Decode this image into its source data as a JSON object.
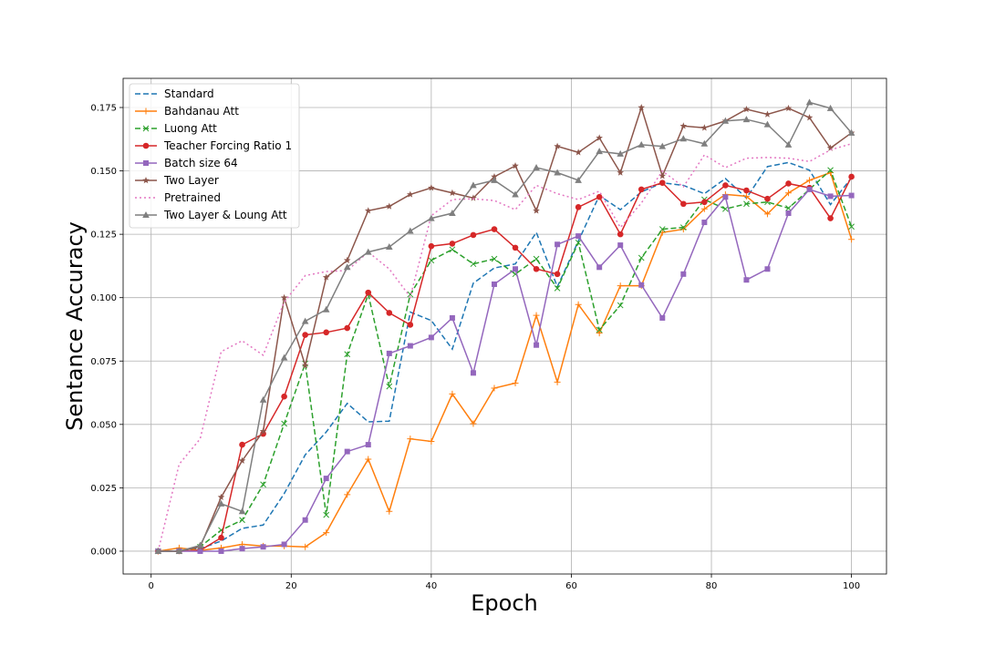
{
  "chart_data": {
    "type": "line",
    "title": "",
    "xlabel": "Epoch",
    "ylabel": "Sentance Accuracy",
    "xlim": [
      -4,
      105
    ],
    "ylim": [
      -0.009,
      0.1865
    ],
    "xticks": [
      0,
      20,
      40,
      60,
      80,
      100
    ],
    "yticks": [
      0.0,
      0.025,
      0.05,
      0.075,
      0.1,
      0.125,
      0.15,
      0.175
    ],
    "ytick_labels": [
      "0.000",
      "0.025",
      "0.050",
      "0.075",
      "0.100",
      "0.125",
      "0.150",
      "0.175"
    ],
    "xtick_labels": [
      "0",
      "20",
      "40",
      "60",
      "80",
      "100"
    ],
    "grid": true,
    "legend_position": "top-left",
    "x": [
      1,
      4,
      7,
      10,
      13,
      16,
      19,
      22,
      25,
      28,
      31,
      34,
      37,
      40,
      43,
      46,
      49,
      52,
      55,
      58,
      61,
      64,
      67,
      70,
      73,
      76,
      79,
      82,
      85,
      88,
      91,
      94,
      97,
      100
    ],
    "series": [
      {
        "name": "Standard",
        "color": "#1f77b4",
        "dash": "6,3",
        "marker": "none",
        "values": [
          0.0,
          0.0,
          0.001,
          0.004,
          0.009,
          0.0103,
          0.0227,
          0.038,
          0.047,
          0.0583,
          0.051,
          0.0513,
          0.0943,
          0.091,
          0.0797,
          0.1057,
          0.1117,
          0.1133,
          0.1257,
          0.1043,
          0.1223,
          0.1403,
          0.1347,
          0.1417,
          0.1453,
          0.1443,
          0.141,
          0.147,
          0.1393,
          0.1517,
          0.1533,
          0.1503,
          0.1367,
          0.1473
        ]
      },
      {
        "name": "Bahdanau Att",
        "color": "#ff7f0e",
        "dash": "",
        "marker": "plus",
        "values": [
          0.0,
          0.0013,
          0.0003,
          0.0013,
          0.0027,
          0.002,
          0.002,
          0.0017,
          0.0073,
          0.0223,
          0.0363,
          0.0157,
          0.0443,
          0.0433,
          0.062,
          0.0503,
          0.0643,
          0.0663,
          0.093,
          0.0667,
          0.0973,
          0.086,
          0.1047,
          0.1047,
          0.1257,
          0.127,
          0.135,
          0.1407,
          0.14,
          0.133,
          0.1413,
          0.1463,
          0.1493,
          0.123
        ]
      },
      {
        "name": "Luong Att",
        "color": "#2ca02c",
        "dash": "6,3",
        "marker": "x",
        "values": [
          0.0,
          0.0,
          0.0017,
          0.0083,
          0.0123,
          0.0263,
          0.0503,
          0.074,
          0.0143,
          0.0777,
          0.1013,
          0.065,
          0.1013,
          0.1147,
          0.119,
          0.1133,
          0.1153,
          0.1093,
          0.1153,
          0.1037,
          0.1217,
          0.0873,
          0.097,
          0.1157,
          0.127,
          0.1277,
          0.1387,
          0.135,
          0.137,
          0.1377,
          0.1353,
          0.1427,
          0.1503,
          0.128
        ]
      },
      {
        "name": "Teacher Forcing Ratio 1",
        "color": "#d62728",
        "dash": "",
        "marker": "circle",
        "values": [
          0.0,
          0.0,
          0.0003,
          0.0053,
          0.042,
          0.0463,
          0.061,
          0.0853,
          0.0863,
          0.088,
          0.102,
          0.094,
          0.0893,
          0.1203,
          0.1213,
          0.1247,
          0.127,
          0.1197,
          0.1113,
          0.1093,
          0.1357,
          0.1397,
          0.125,
          0.1427,
          0.1453,
          0.137,
          0.1377,
          0.1443,
          0.1423,
          0.139,
          0.145,
          0.1433,
          0.1313,
          0.1477
        ]
      },
      {
        "name": "Batch size 64",
        "color": "#9467bd",
        "dash": "",
        "marker": "square",
        "values": [
          0.0,
          0.0,
          0.0,
          0.0,
          0.001,
          0.0017,
          0.0027,
          0.0123,
          0.0287,
          0.0393,
          0.042,
          0.078,
          0.081,
          0.0843,
          0.092,
          0.0703,
          0.1053,
          0.1113,
          0.0813,
          0.121,
          0.1243,
          0.112,
          0.1207,
          0.105,
          0.092,
          0.1093,
          0.1297,
          0.1397,
          0.107,
          0.1113,
          0.1333,
          0.1427,
          0.14,
          0.1403
        ]
      },
      {
        "name": "Two Layer",
        "color": "#8c564b",
        "dash": "",
        "marker": "star",
        "values": [
          0.0,
          0.0,
          0.0017,
          0.0213,
          0.0357,
          0.0473,
          0.1,
          0.0733,
          0.108,
          0.1147,
          0.1343,
          0.136,
          0.1407,
          0.1433,
          0.1413,
          0.1393,
          0.1477,
          0.152,
          0.1343,
          0.1597,
          0.1573,
          0.163,
          0.1493,
          0.175,
          0.148,
          0.1677,
          0.167,
          0.1697,
          0.1743,
          0.1723,
          0.1747,
          0.171,
          0.159,
          0.165
        ]
      },
      {
        "name": "Pretrained",
        "color": "#e377c2",
        "dash": "2,3",
        "marker": "none",
        "values": [
          0.0,
          0.0343,
          0.0443,
          0.0787,
          0.083,
          0.0773,
          0.0983,
          0.1087,
          0.1103,
          0.1107,
          0.118,
          0.1113,
          0.1003,
          0.1323,
          0.1387,
          0.139,
          0.1383,
          0.1347,
          0.1443,
          0.141,
          0.1387,
          0.142,
          0.1277,
          0.1373,
          0.15,
          0.1437,
          0.1563,
          0.1513,
          0.155,
          0.1553,
          0.155,
          0.1537,
          0.1583,
          0.1607
        ]
      },
      {
        "name": "Two Layer & Loung Att",
        "color": "#7f7f7f",
        "dash": "",
        "marker": "triangle",
        "values": [
          0.0,
          0.0,
          0.0023,
          0.0187,
          0.0157,
          0.0597,
          0.0763,
          0.0907,
          0.0953,
          0.112,
          0.118,
          0.12,
          0.1263,
          0.1313,
          0.1333,
          0.1443,
          0.1463,
          0.1407,
          0.1513,
          0.1493,
          0.1463,
          0.1577,
          0.1567,
          0.1603,
          0.1597,
          0.1627,
          0.1607,
          0.1697,
          0.1703,
          0.1683,
          0.1603,
          0.177,
          0.1747,
          0.165
        ]
      }
    ]
  }
}
